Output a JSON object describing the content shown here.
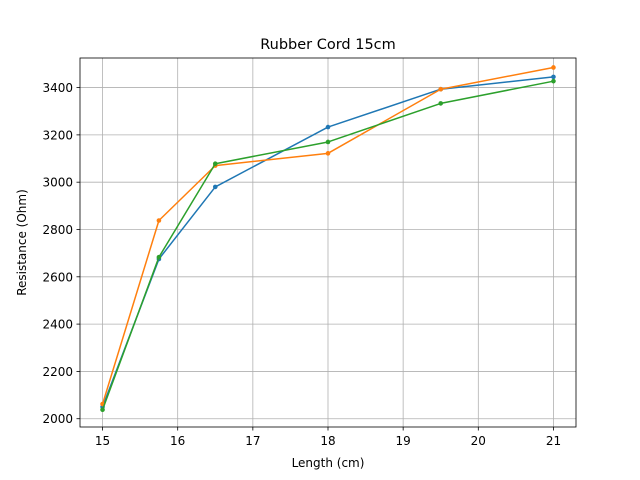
{
  "chart_data": {
    "type": "line",
    "title": "Rubber Cord 15cm",
    "xlabel": "Length (cm)",
    "ylabel": "Resistance (Ohm)",
    "xlim": [
      14.7,
      21.3
    ],
    "ylim": [
      1965,
      3525
    ],
    "xticks": [
      15,
      16,
      17,
      18,
      19,
      20,
      21
    ],
    "yticks": [
      2000,
      2200,
      2400,
      2600,
      2800,
      3000,
      3200,
      3400
    ],
    "grid": true,
    "x": [
      15,
      15.75,
      16.5,
      18,
      19.5,
      21
    ],
    "series": [
      {
        "color": "#1f77b4",
        "values": [
          2050,
          2675,
          2980,
          3233,
          3393,
          3445
        ]
      },
      {
        "color": "#ff7f0e",
        "values": [
          2062,
          2838,
          3070,
          3122,
          3393,
          3485
        ]
      },
      {
        "color": "#2ca02c",
        "values": [
          2038,
          2683,
          3078,
          3170,
          3333,
          3427
        ]
      }
    ]
  }
}
